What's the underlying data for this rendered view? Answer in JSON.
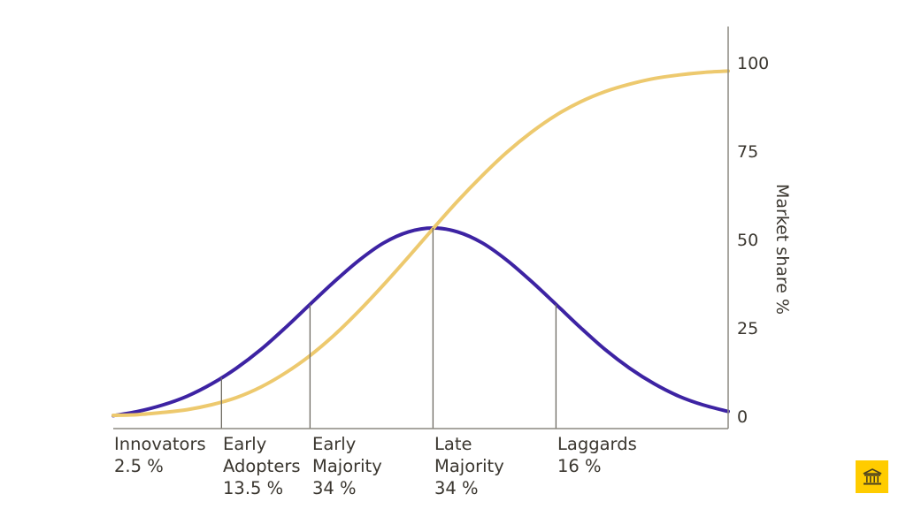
{
  "chart_data": {
    "type": "line",
    "ylabel": "Market share %",
    "ylim": [
      -1.75,
      112
    ],
    "yticks": [
      "0",
      "25",
      "50",
      "75",
      "100"
    ],
    "ytick_values": [
      0,
      25,
      50,
      75,
      100
    ],
    "xlim": [
      -2.6,
      2.4
    ],
    "x": [
      -2.6,
      -2.4,
      -2.2,
      -2.0,
      -1.8,
      -1.6,
      -1.4,
      -1.2,
      -1.0,
      -0.8,
      -0.6,
      -0.4,
      -0.2,
      0,
      0.2,
      0.4,
      0.6,
      0.8,
      1.0,
      1.2,
      1.4,
      1.6,
      1.8,
      2.0,
      2.2,
      2.4
    ],
    "series": [
      {
        "color": "#3d23a3",
        "values": [
          1.9,
          3.1,
          4.9,
          7.4,
          10.9,
          15.3,
          20.6,
          26.8,
          33.4,
          39.9,
          45.9,
          50.8,
          53.9,
          55,
          53.9,
          50.8,
          45.9,
          39.9,
          33.4,
          26.8,
          20.6,
          15.3,
          10.9,
          7.4,
          4.9,
          3.1
        ]
      },
      {
        "color": "#edc96e",
        "values": [
          2,
          2.2,
          2.8,
          3.6,
          5,
          7,
          10,
          14,
          18.9,
          24.8,
          31.6,
          39,
          46.8,
          54.8,
          62.6,
          69.8,
          76.4,
          82.1,
          86.9,
          90.7,
          93.6,
          95.7,
          97.3,
          98.3,
          99,
          99.4
        ]
      }
    ],
    "dividers": [
      -1.72,
      -1.0,
      0,
      1.0
    ],
    "segments": [
      {
        "lines": [
          "Innovators",
          "2.5 %"
        ]
      },
      {
        "lines": [
          "Early",
          "Adopters",
          "13.5 %"
        ]
      },
      {
        "lines": [
          "Early",
          "Majority",
          "34 %"
        ]
      },
      {
        "lines": [
          "Late",
          "Majority",
          "34 %"
        ]
      },
      {
        "lines": [
          "Laggards",
          "16 %"
        ]
      }
    ],
    "grid": false,
    "axis_color": "#8c8980"
  },
  "badge": {
    "icon": "bank-icon",
    "color": "#ffcc00"
  }
}
